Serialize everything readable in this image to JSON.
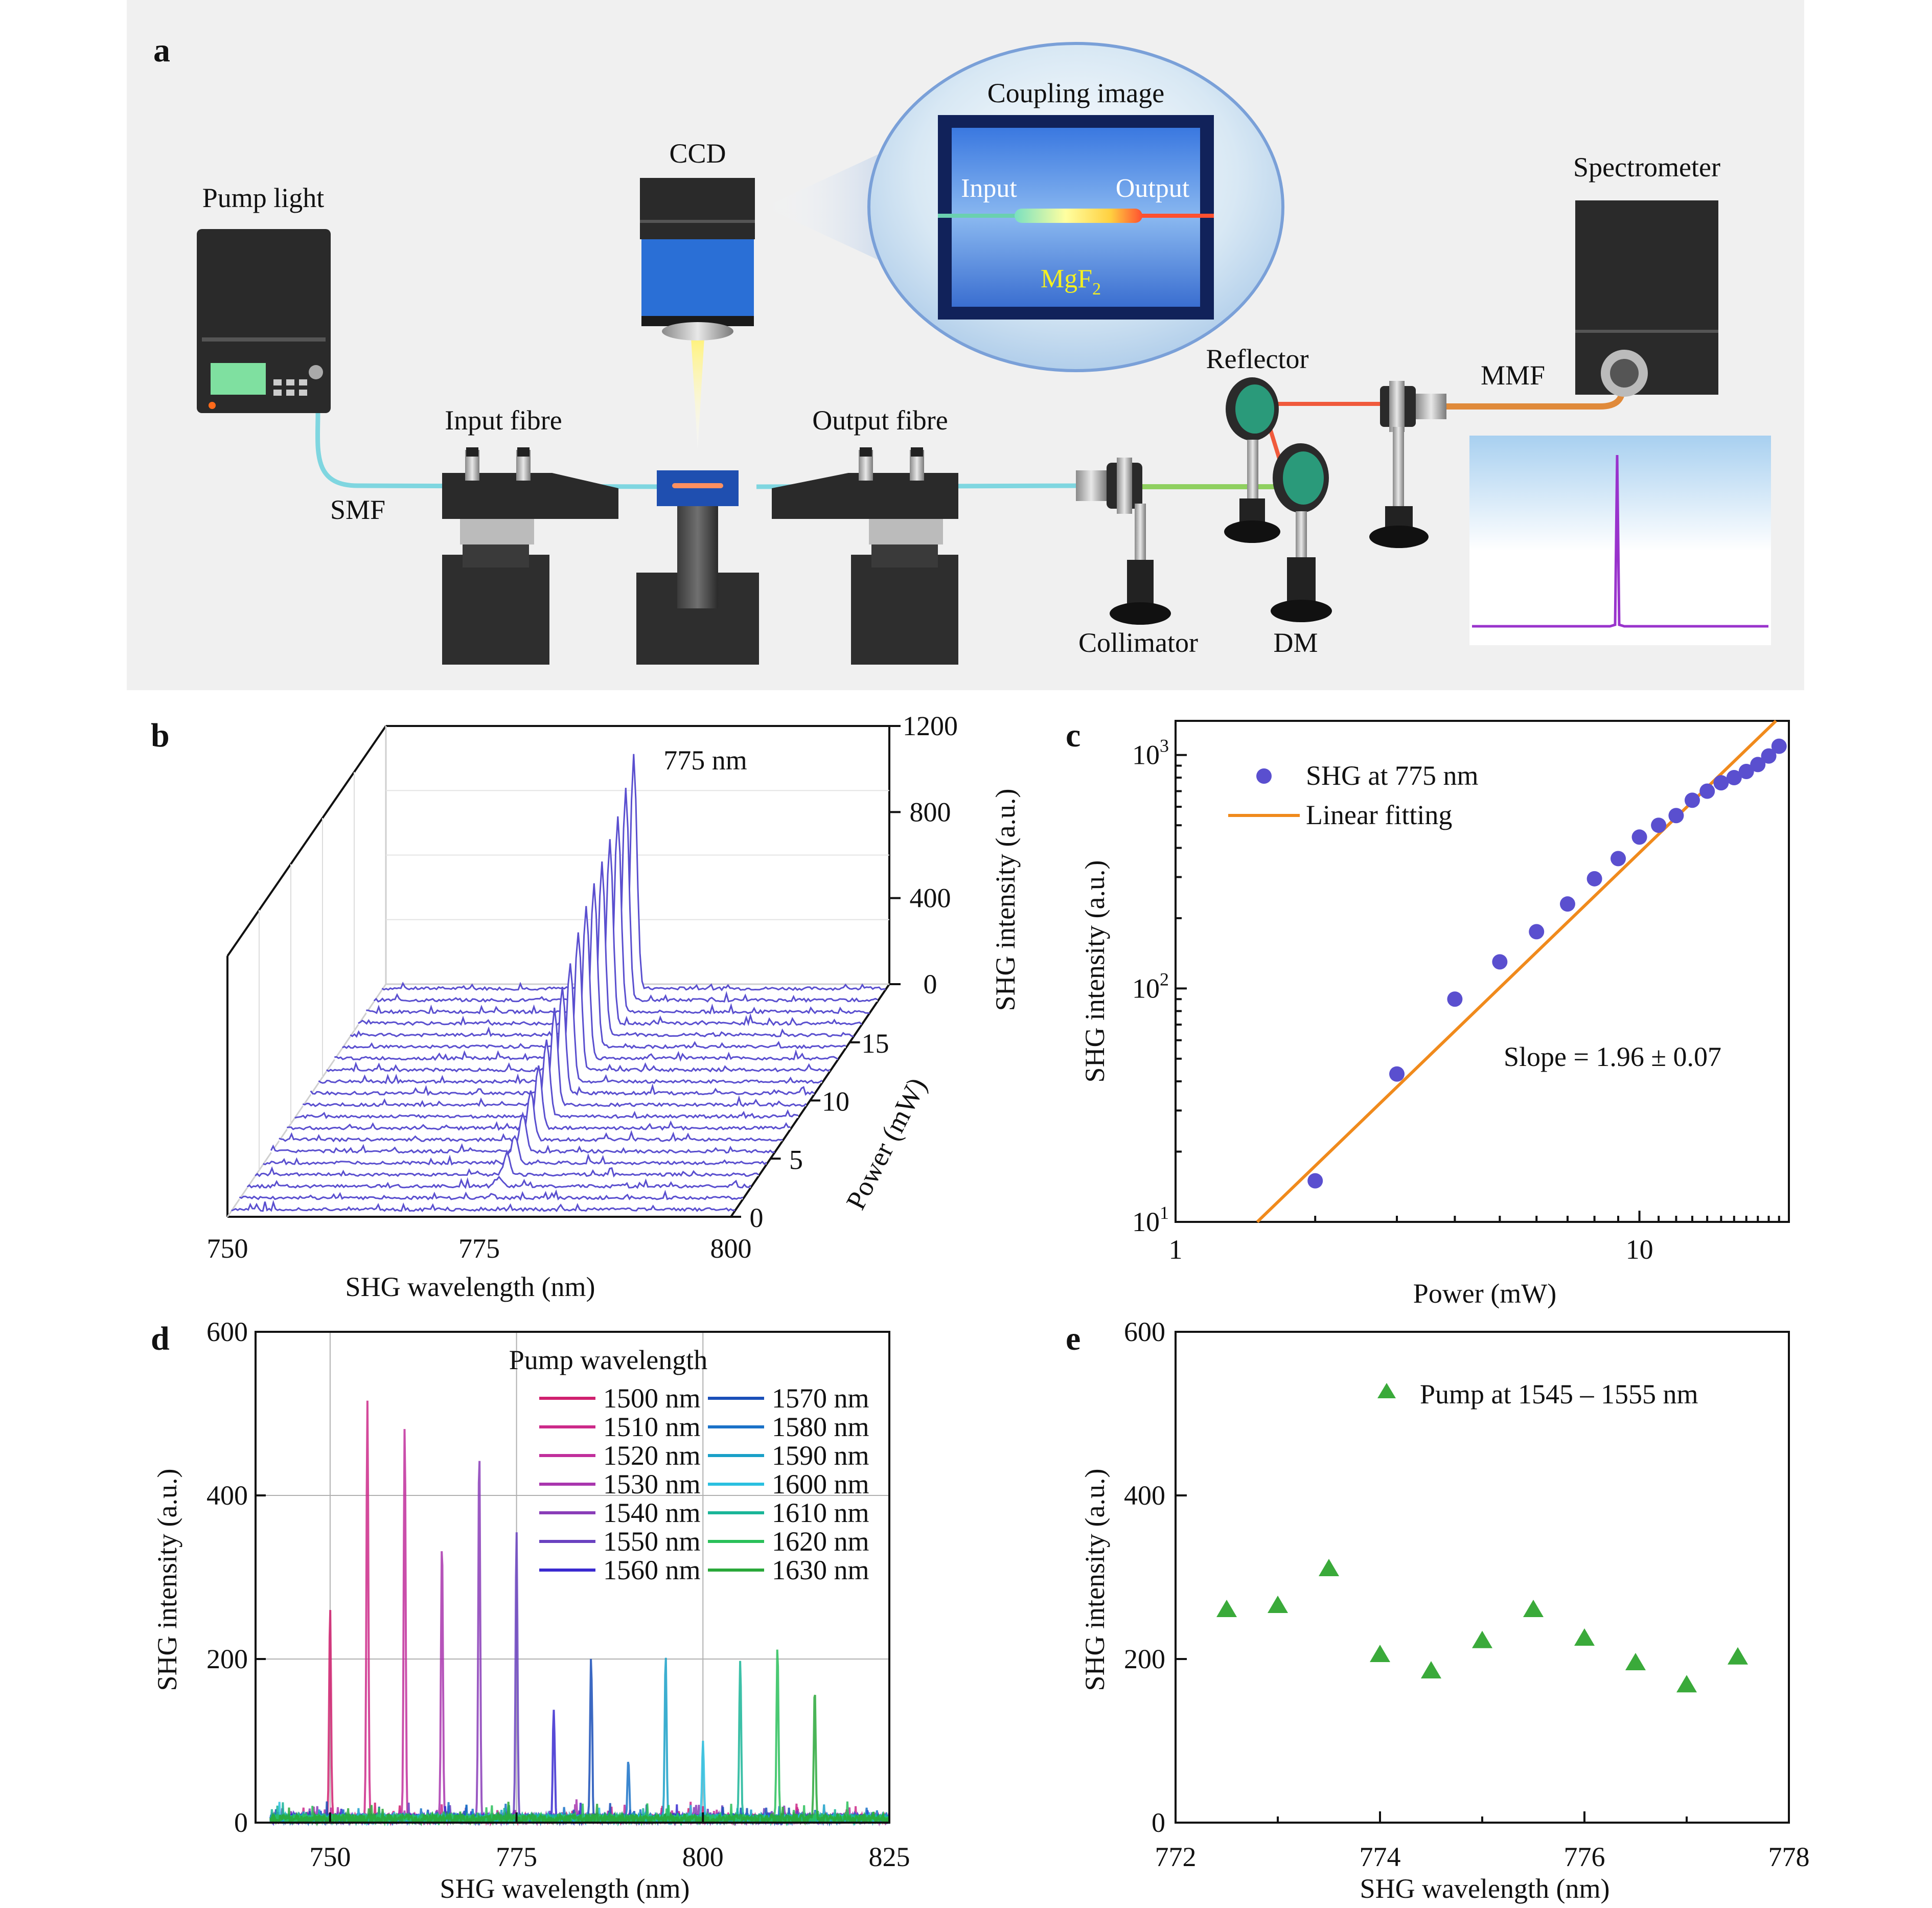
{
  "panel_letters": {
    "a": "a",
    "b": "b",
    "c": "c",
    "d": "d",
    "e": "e"
  },
  "setup": {
    "labels": {
      "pump_light": "Pump light",
      "ccd": "CCD",
      "coupling_image": "Coupling image",
      "input": "Input",
      "output": "Output",
      "mgf2": "MgF",
      "mgf2_sub": "2",
      "spectrometer": "Spectrometer",
      "reflector": "Reflector",
      "mmf": "MMF",
      "input_fibre": "Input fibre",
      "output_fibre": "Output fibre",
      "smf": "SMF",
      "collimator": "Collimator",
      "dm": "DM"
    },
    "colors": {
      "background": "#f0f0f0",
      "fibre": "#7fd6e0",
      "laser_red": "#f05a3c",
      "laser_green": "#8fd060",
      "mmf": "#e08a3a",
      "spectrum_line": "#9933cc",
      "camera_blue": "#2a6fd6",
      "mirror_green": "#2a9a7a"
    }
  },
  "chart_data": [
    {
      "id": "b",
      "type": "waterfall",
      "xlabel": "SHG wavelength (nm)",
      "x_ticks": [
        750,
        775,
        800
      ],
      "y_axis_label": "Power (mW)",
      "y_ticks": [
        0,
        5,
        10,
        15
      ],
      "zlabel": "SHG intensity (a.u.)",
      "z_ticks": [
        0,
        400,
        800,
        1200
      ],
      "annotation": "775 nm",
      "peak_wavelength": 775,
      "powers_mW": [
        1,
        2,
        3,
        4,
        5,
        6,
        7,
        8,
        9,
        10,
        11,
        12,
        13,
        14,
        15,
        16,
        17,
        18,
        19,
        20
      ],
      "peak_intensity": [
        4,
        15,
        43,
        90,
        130,
        175,
        230,
        295,
        360,
        445,
        500,
        550,
        640,
        700,
        760,
        800,
        850,
        910,
        990,
        1090
      ],
      "line_color": "#5a4fcf"
    },
    {
      "id": "c",
      "type": "scatter",
      "xscale": "log",
      "yscale": "log",
      "xlabel": "Power (mW)",
      "ylabel": "SHG intensity (a.u.)",
      "xlim": [
        1,
        21
      ],
      "ylim": [
        10,
        1400
      ],
      "x_ticks": [
        1,
        10
      ],
      "y_ticks": [
        {
          "base": "10",
          "exp": "1",
          "value": 10
        },
        {
          "base": "10",
          "exp": "2",
          "value": 100
        },
        {
          "base": "10",
          "exp": "3",
          "value": 1000
        }
      ],
      "series": [
        {
          "name": "SHG at 775 nm",
          "marker": "circle",
          "color": "#5a4fcf",
          "x": [
            2,
            3,
            4,
            5,
            6,
            7,
            8,
            9,
            10,
            11,
            12,
            13,
            14,
            15,
            16,
            17,
            18,
            19,
            20
          ],
          "y": [
            15,
            43,
            90,
            130,
            175,
            230,
            295,
            360,
            445,
            500,
            550,
            640,
            700,
            760,
            800,
            850,
            910,
            990,
            1090
          ]
        },
        {
          "name": "Linear fitting",
          "marker": "line",
          "color": "#f08a1c",
          "x": [
            1.5,
            19.7
          ],
          "y": [
            10,
            1400
          ]
        }
      ],
      "annotation": "Slope = 1.96 ± 0.07",
      "legend_position": "top-left"
    },
    {
      "id": "d",
      "type": "line",
      "xlabel": "SHG wavelength (nm)",
      "ylabel": "SHG intensity (a.u.)",
      "xlim": [
        740,
        825
      ],
      "ylim": [
        0,
        600
      ],
      "x_ticks": [
        750,
        775,
        800,
        825
      ],
      "y_ticks": [
        0,
        200,
        400,
        600
      ],
      "grid": true,
      "legend_title": "Pump wavelength",
      "legend_position": "top-right",
      "series": [
        {
          "name": "1500 nm",
          "peak_x": 750,
          "peak_y": 255,
          "color": "#d0206f"
        },
        {
          "name": "1510 nm",
          "peak_x": 755,
          "peak_y": 508,
          "color": "#cc2a8a"
        },
        {
          "name": "1520 nm",
          "peak_x": 760,
          "peak_y": 482,
          "color": "#c12f9c"
        },
        {
          "name": "1530 nm",
          "peak_x": 765,
          "peak_y": 345,
          "color": "#a936ae"
        },
        {
          "name": "1540 nm",
          "peak_x": 770,
          "peak_y": 452,
          "color": "#8a3db8"
        },
        {
          "name": "1550 nm",
          "peak_x": 775,
          "peak_y": 355,
          "color": "#6a42c0"
        },
        {
          "name": "1560 nm",
          "peak_x": 780,
          "peak_y": 138,
          "color": "#3a2ad0"
        },
        {
          "name": "1570 nm",
          "peak_x": 785,
          "peak_y": 200,
          "color": "#1a4fb8"
        },
        {
          "name": "1580 nm",
          "peak_x": 790,
          "peak_y": 72,
          "color": "#1a72c8"
        },
        {
          "name": "1590 nm",
          "peak_x": 795,
          "peak_y": 197,
          "color": "#1aa0c8"
        },
        {
          "name": "1600 nm",
          "peak_x": 800,
          "peak_y": 97,
          "color": "#2ac0e0"
        },
        {
          "name": "1610 nm",
          "peak_x": 805,
          "peak_y": 196,
          "color": "#1ab598"
        },
        {
          "name": "1620 nm",
          "peak_x": 810,
          "peak_y": 212,
          "color": "#2ac05a"
        },
        {
          "name": "1630 nm",
          "peak_x": 815,
          "peak_y": 160,
          "color": "#2aa83a"
        }
      ]
    },
    {
      "id": "e",
      "type": "scatter",
      "xlabel": "SHG wavelength (nm)",
      "ylabel": "SHG intensity (a.u.)",
      "xlim": [
        772,
        778
      ],
      "ylim": [
        0,
        600
      ],
      "x_ticks": [
        772,
        774,
        776,
        778
      ],
      "y_ticks": [
        0,
        200,
        400,
        600
      ],
      "legend_position": "top-right",
      "series": [
        {
          "name": "Pump at 1545 – 1555 nm",
          "marker": "triangle",
          "color": "#3aaa3a",
          "x": [
            772.5,
            773.0,
            773.5,
            774.0,
            774.5,
            775.0,
            775.5,
            776.0,
            776.5,
            777.0,
            777.5
          ],
          "y": [
            260,
            265,
            310,
            205,
            185,
            222,
            260,
            225,
            195,
            168,
            202
          ]
        }
      ]
    }
  ]
}
